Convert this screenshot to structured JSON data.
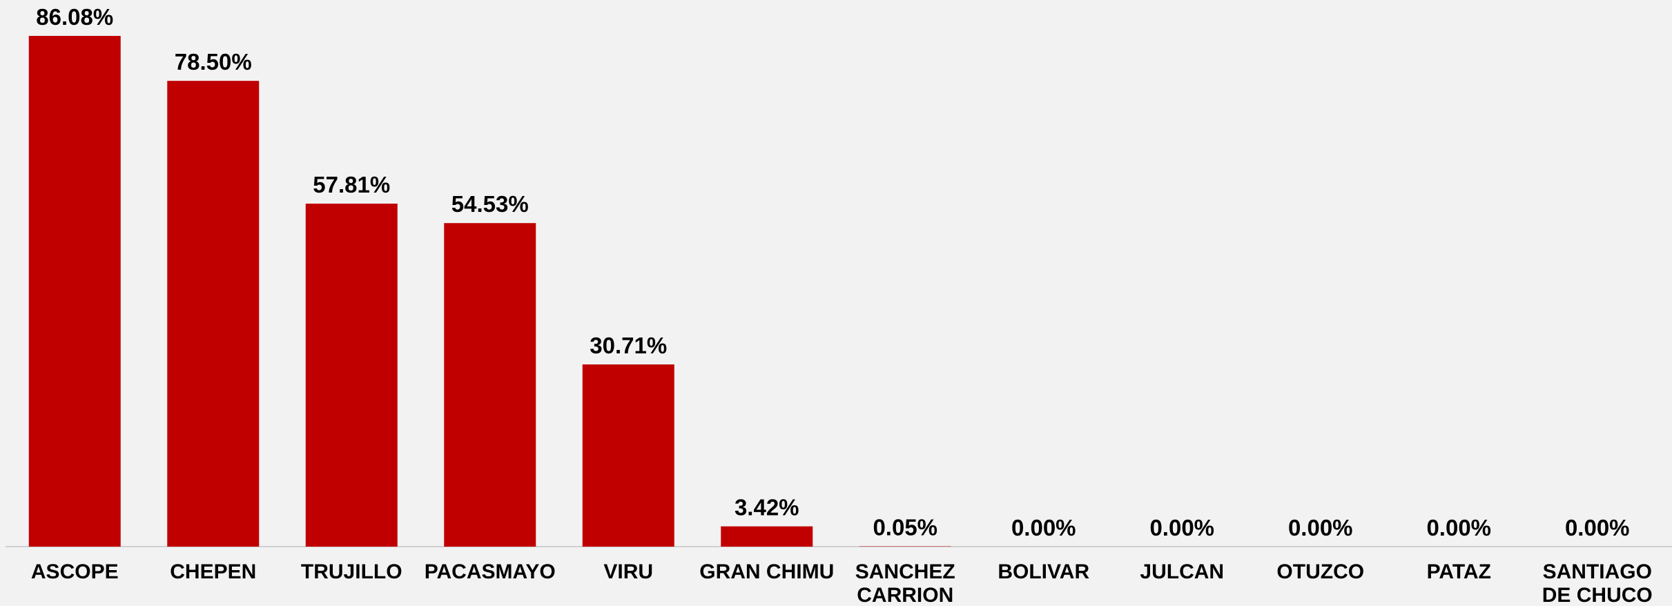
{
  "chart_data": {
    "type": "bar",
    "categories": [
      "ASCOPE",
      "CHEPEN",
      "TRUJILLO",
      "PACASMAYO",
      "VIRU",
      "GRAN CHIMU",
      "SANCHEZ CARRION",
      "BOLIVAR",
      "JULCAN",
      "OTUZCO",
      "PATAZ",
      "SANTIAGO DE CHUCO"
    ],
    "values": [
      86.08,
      78.5,
      57.81,
      54.53,
      30.71,
      3.42,
      0.05,
      0.0,
      0.0,
      0.0,
      0.0,
      0.0
    ],
    "value_labels": [
      "86.08%",
      "78.50%",
      "57.81%",
      "54.53%",
      "30.71%",
      "3.42%",
      "0.05%",
      "0.00%",
      "0.00%",
      "0.00%",
      "0.00%",
      "0.00%"
    ],
    "color": "#c00000"
  }
}
